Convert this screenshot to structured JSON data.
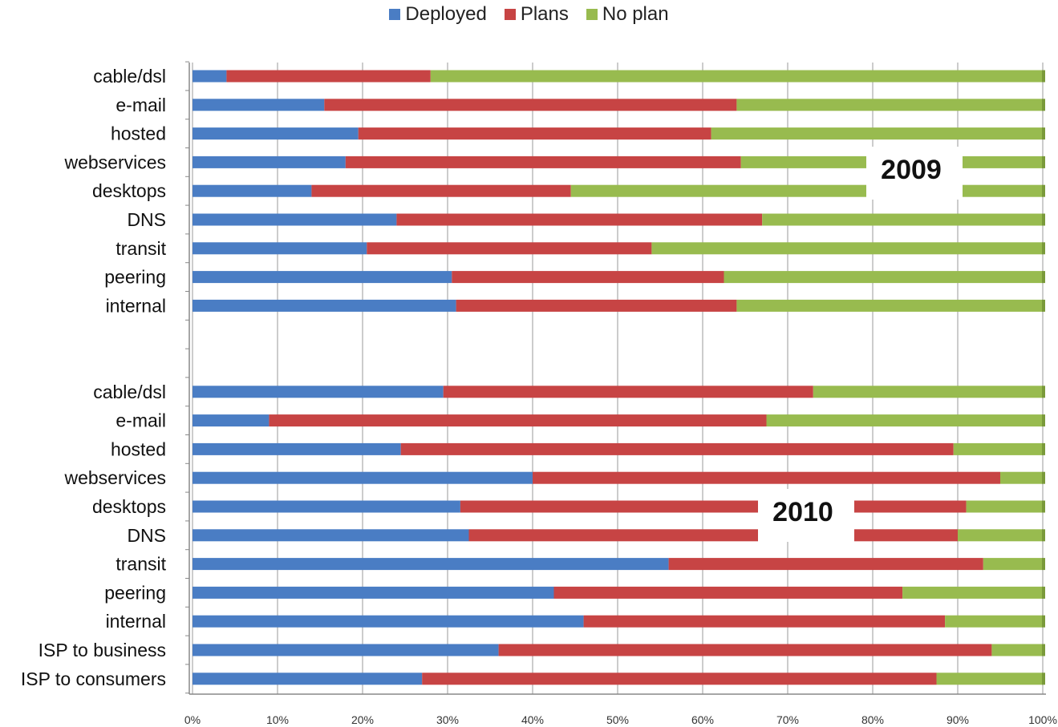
{
  "chart_data": {
    "type": "bar",
    "orientation": "horizontal",
    "stacked": true,
    "percent_axis": true,
    "series_names": [
      "Deployed",
      "Plans",
      "No plan"
    ],
    "colors": {
      "Deployed": "#4a7dc4",
      "Plans": "#c74444",
      "No plan": "#98bb4f"
    },
    "x_ticks": [
      "0%",
      "10%",
      "20%",
      "30%",
      "40%",
      "50%",
      "60%",
      "70%",
      "80%",
      "90%",
      "100%"
    ],
    "xlim": [
      0,
      100
    ],
    "grid": true,
    "legend_position": "top",
    "groups": [
      {
        "label": "2009",
        "categories": [
          "cable/dsl",
          "e-mail",
          "hosted",
          "webservices",
          "desktops",
          "DNS",
          "transit",
          "peering",
          "internal"
        ],
        "series": [
          {
            "name": "Deployed",
            "values": [
              4,
              15.5,
              19.5,
              18,
              14,
              24,
              20.5,
              30.5,
              31
            ]
          },
          {
            "name": "Plans",
            "values": [
              24,
              48.5,
              41.5,
              46.5,
              30.5,
              43,
              33.5,
              32,
              33
            ]
          },
          {
            "name": "No plan",
            "values": [
              72,
              36,
              39,
              35.5,
              55.5,
              33,
              46,
              37.5,
              36
            ]
          }
        ]
      },
      {
        "label": "2010",
        "categories": [
          "cable/dsl",
          "e-mail",
          "hosted",
          "webservices",
          "desktops",
          "DNS",
          "transit",
          "peering",
          "internal",
          "ISP to business",
          "ISP to consumers"
        ],
        "series": [
          {
            "name": "Deployed",
            "values": [
              29.5,
              9,
              24.5,
              40,
              31.5,
              32.5,
              56,
              42.5,
              46,
              36,
              27
            ]
          },
          {
            "name": "Plans",
            "values": [
              43.5,
              58.5,
              65,
              55,
              59.5,
              57.5,
              37,
              41,
              42.5,
              58,
              60.5
            ]
          },
          {
            "name": "No plan",
            "values": [
              27,
              32.5,
              10.5,
              5,
              9,
              10,
              7,
              16.5,
              11.5,
              6,
              12.5
            ]
          }
        ]
      }
    ]
  }
}
